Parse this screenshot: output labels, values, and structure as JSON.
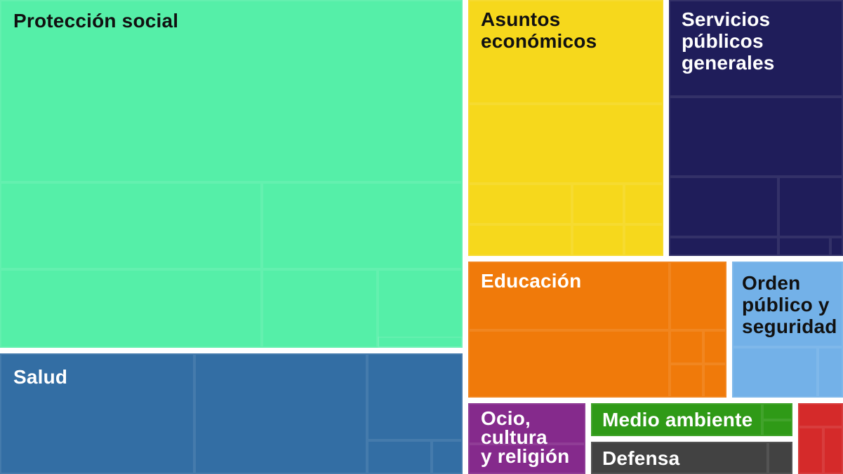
{
  "chart_data": {
    "type": "treemap",
    "categories": [
      {
        "id": "proteccion",
        "label": "Protección social",
        "color": "#55efa8",
        "text_color": "#111111"
      },
      {
        "id": "salud",
        "label": "Salud",
        "color": "#336ea4",
        "text_color": "#ffffff"
      },
      {
        "id": "asuntos",
        "label": "Asuntos\neconómicos",
        "color": "#f6d81c",
        "text_color": "#111111"
      },
      {
        "id": "servicios",
        "label": "Servicios\npúblicos\ngenerales",
        "color": "#1f1d5a",
        "text_color": "#ffffff"
      },
      {
        "id": "educacion",
        "label": "Educación",
        "color": "#f07a0a",
        "text_color": "#ffffff"
      },
      {
        "id": "orden",
        "label": "Orden\npúblico y\nseguridad",
        "color": "#73b1e8",
        "text_color": "#111111"
      },
      {
        "id": "ocio",
        "label": "Ocio,\ncultura\ny religión",
        "color": "#852a8c",
        "text_color": "#ffffff"
      },
      {
        "id": "medio",
        "label": "Medio ambiente",
        "color": "#2f9a17",
        "text_color": "#ffffff"
      },
      {
        "id": "defensa",
        "label": "Defensa",
        "color": "#424242",
        "text_color": "#ffffff"
      },
      {
        "id": "vivienda",
        "label": "",
        "color": "#d52a2a",
        "text_color": "#ffffff"
      }
    ]
  }
}
